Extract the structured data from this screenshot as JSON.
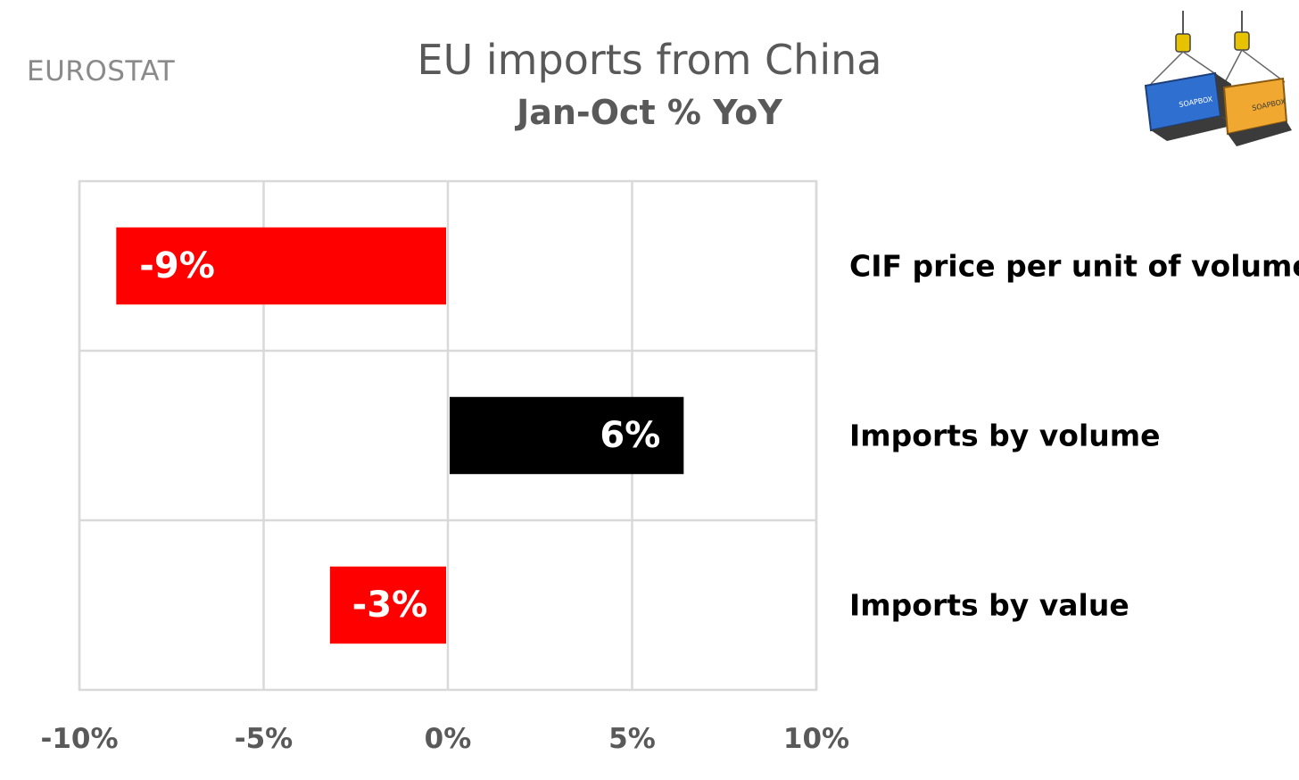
{
  "source_label": "EUROSTAT",
  "chart_data": {
    "type": "bar",
    "orientation": "horizontal",
    "title": "EU imports from China",
    "subtitle": "Jan-Oct % YoY",
    "categories": [
      "CIF price per unit of volume",
      "Imports by volume",
      "Imports by value"
    ],
    "values": [
      -9,
      6.4,
      -3.2
    ],
    "data_labels": [
      "-9%",
      "6%",
      "-3%"
    ],
    "colors": [
      "#ff0000",
      "#000000",
      "#ff0000"
    ],
    "xlim": [
      -10,
      10
    ],
    "xticks": [
      -10,
      -5,
      0,
      5,
      10
    ],
    "xtick_labels": [
      "-10%",
      "-5%",
      "0%",
      "5%",
      "10%"
    ],
    "grid": true,
    "category_label_position": "right"
  },
  "logo": {
    "icon": "shipping-containers-logo",
    "text": [
      "SOAPBOX",
      "SOAPBOX"
    ],
    "colors": {
      "left": "#2e6fd0",
      "right": "#f0a830",
      "dark": "#3b3b3b"
    }
  }
}
